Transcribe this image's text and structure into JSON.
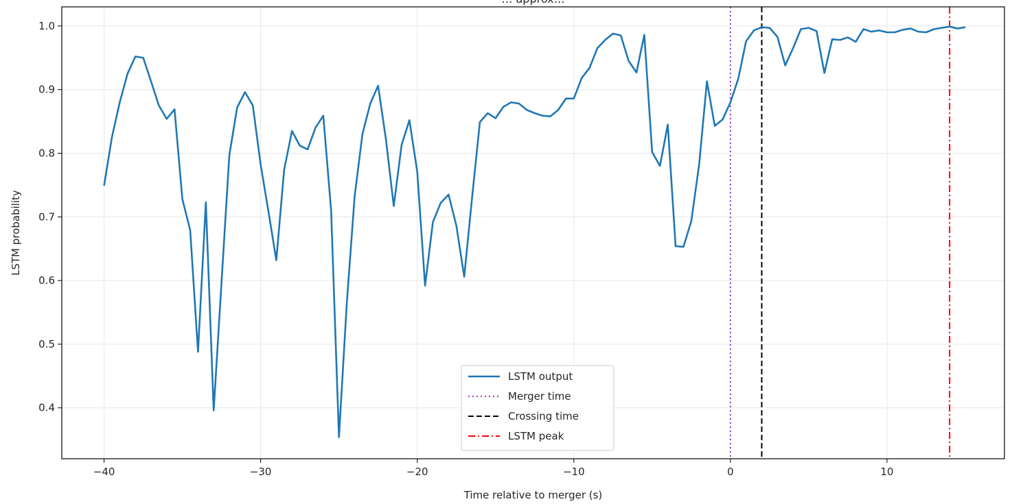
{
  "chart_data": {
    "type": "line",
    "title": "… approx…",
    "xlabel": "Time relative to merger (s)",
    "ylabel": "LSTM probability",
    "xlim": [
      -42.7,
      17.5
    ],
    "ylim": [
      0.32,
      1.03
    ],
    "xticks": [
      -40,
      -30,
      -20,
      -10,
      0,
      10
    ],
    "xtick_labels": [
      "−40",
      "−30",
      "−20",
      "−10",
      "0",
      "10"
    ],
    "yticks": [
      0.4,
      0.5,
      0.6,
      0.7,
      0.8,
      0.9,
      1.0
    ],
    "ytick_labels": [
      "0.4",
      "0.5",
      "0.6",
      "0.7",
      "0.8",
      "0.9",
      "1.0"
    ],
    "grid": true,
    "legend_position": "bottom-center",
    "series": [
      {
        "name": "LSTM output",
        "color": "#1f77b4",
        "style": "solid",
        "x": [
          -40.0,
          -39.5,
          -39.0,
          -38.5,
          -38.0,
          -37.5,
          -37.0,
          -36.5,
          -36.0,
          -35.5,
          -35.0,
          -34.5,
          -34.0,
          -33.5,
          -33.0,
          -32.5,
          -32.0,
          -31.5,
          -31.0,
          -30.5,
          -30.0,
          -29.5,
          -29.0,
          -28.5,
          -28.0,
          -27.5,
          -27.0,
          -26.5,
          -26.0,
          -25.5,
          -25.0,
          -24.5,
          -24.0,
          -23.5,
          -23.0,
          -22.5,
          -22.0,
          -21.5,
          -21.0,
          -20.5,
          -20.0,
          -19.5,
          -19.0,
          -18.5,
          -18.0,
          -17.5,
          -17.0,
          -16.5,
          -16.0,
          -15.5,
          -15.0,
          -14.5,
          -14.0,
          -13.5,
          -13.0,
          -12.5,
          -12.0,
          -11.5,
          -11.0,
          -10.5,
          -10.0,
          -9.5,
          -9.0,
          -8.5,
          -8.0,
          -7.5,
          -7.0,
          -6.5,
          -6.0,
          -5.5,
          -5.0,
          -4.5,
          -4.0,
          -3.5,
          -3.0,
          -2.5,
          -2.0,
          -1.5,
          -1.0,
          -0.5,
          0.0,
          0.5,
          1.0,
          1.5,
          2.0,
          2.5,
          3.0,
          3.5,
          4.0,
          4.5,
          5.0,
          5.5,
          6.0,
          6.5,
          7.0,
          7.5,
          8.0,
          8.5,
          9.0,
          9.5,
          10.0,
          10.5,
          11.0,
          11.5,
          12.0,
          12.5,
          13.0,
          13.5,
          14.0,
          14.5,
          15.0
        ],
        "y": [
          0.749,
          0.825,
          0.88,
          0.925,
          0.952,
          0.95,
          0.913,
          0.875,
          0.854,
          0.869,
          0.728,
          0.679,
          0.488,
          0.723,
          0.396,
          0.597,
          0.797,
          0.872,
          0.896,
          0.875,
          0.782,
          0.708,
          0.632,
          0.774,
          0.835,
          0.812,
          0.806,
          0.84,
          0.859,
          0.71,
          0.354,
          0.564,
          0.732,
          0.83,
          0.878,
          0.906,
          0.822,
          0.717,
          0.813,
          0.852,
          0.771,
          0.592,
          0.692,
          0.722,
          0.735,
          0.686,
          0.606,
          0.73,
          0.849,
          0.863,
          0.855,
          0.873,
          0.88,
          0.878,
          0.868,
          0.863,
          0.859,
          0.858,
          0.868,
          0.886,
          0.886,
          0.918,
          0.934,
          0.965,
          0.978,
          0.988,
          0.985,
          0.945,
          0.927,
          0.986,
          0.802,
          0.78,
          0.845,
          0.654,
          0.653,
          0.693,
          0.782,
          0.913,
          0.843,
          0.853,
          0.88,
          0.917,
          0.976,
          0.993,
          0.998,
          0.997,
          0.983,
          0.938,
          0.965,
          0.995,
          0.997,
          0.992,
          0.926,
          0.979,
          0.978,
          0.982,
          0.975,
          0.995,
          0.991,
          0.993,
          0.99,
          0.99,
          0.994,
          0.996,
          0.991,
          0.99,
          0.995,
          0.997,
          0.999,
          0.996,
          0.998
        ]
      },
      {
        "name": "Merger time",
        "color": "#9932cc",
        "style": "dotted",
        "x_value": 0.0
      },
      {
        "name": "Crossing time",
        "color": "#000000",
        "style": "dashed",
        "x_value": 2.0
      },
      {
        "name": "LSTM peak",
        "color": "#ff0000",
        "style": "dashdot",
        "x_value": 14.0
      }
    ]
  }
}
